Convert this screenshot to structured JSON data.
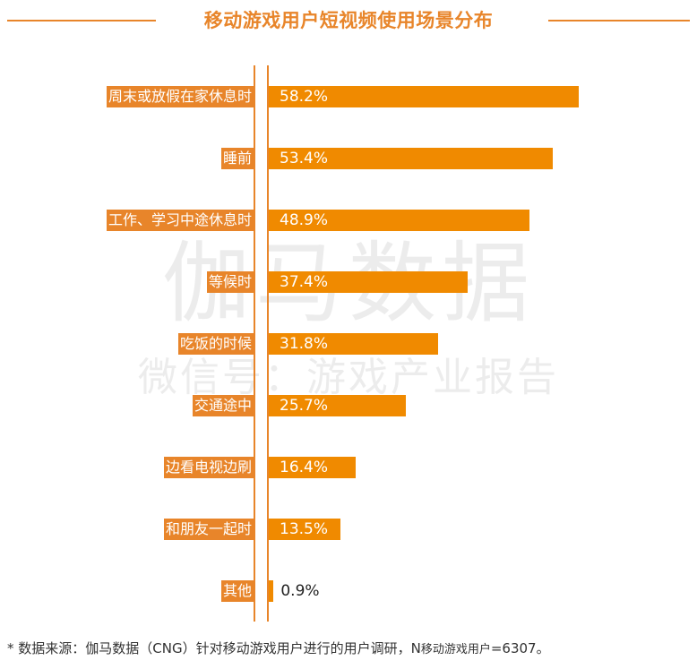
{
  "chart_data": {
    "type": "bar",
    "orientation": "horizontal",
    "title": "移动游戏用户短视频使用场景分布",
    "categories": [
      "周末或放假在家休息时",
      "睡前",
      "工作、学习中途休息时",
      "等候时",
      "吃饭的时候",
      "交通途中",
      "边看电视边刷",
      "和朋友一起时",
      "其他"
    ],
    "values": [
      58.2,
      53.4,
      48.9,
      37.4,
      31.8,
      25.7,
      16.4,
      13.5,
      0.9
    ],
    "value_labels": [
      "58.2%",
      "53.4%",
      "48.9%",
      "37.4%",
      "31.8%",
      "25.7%",
      "16.4%",
      "13.5%",
      "0.9%"
    ],
    "xlim": [
      0,
      58.2
    ],
    "grid": false,
    "bar_color": "#f08a00",
    "label_bg_color": "#e8852a"
  },
  "watermark": {
    "line1": "伽马数据",
    "line2": "微信号：游戏产业报告"
  },
  "footnote": {
    "prefix": "*  数据来源：伽马数据（CNG）针对移动游戏用户进行的用户调研，N",
    "small": "移动游戏用户",
    "suffix": "=6307。"
  }
}
